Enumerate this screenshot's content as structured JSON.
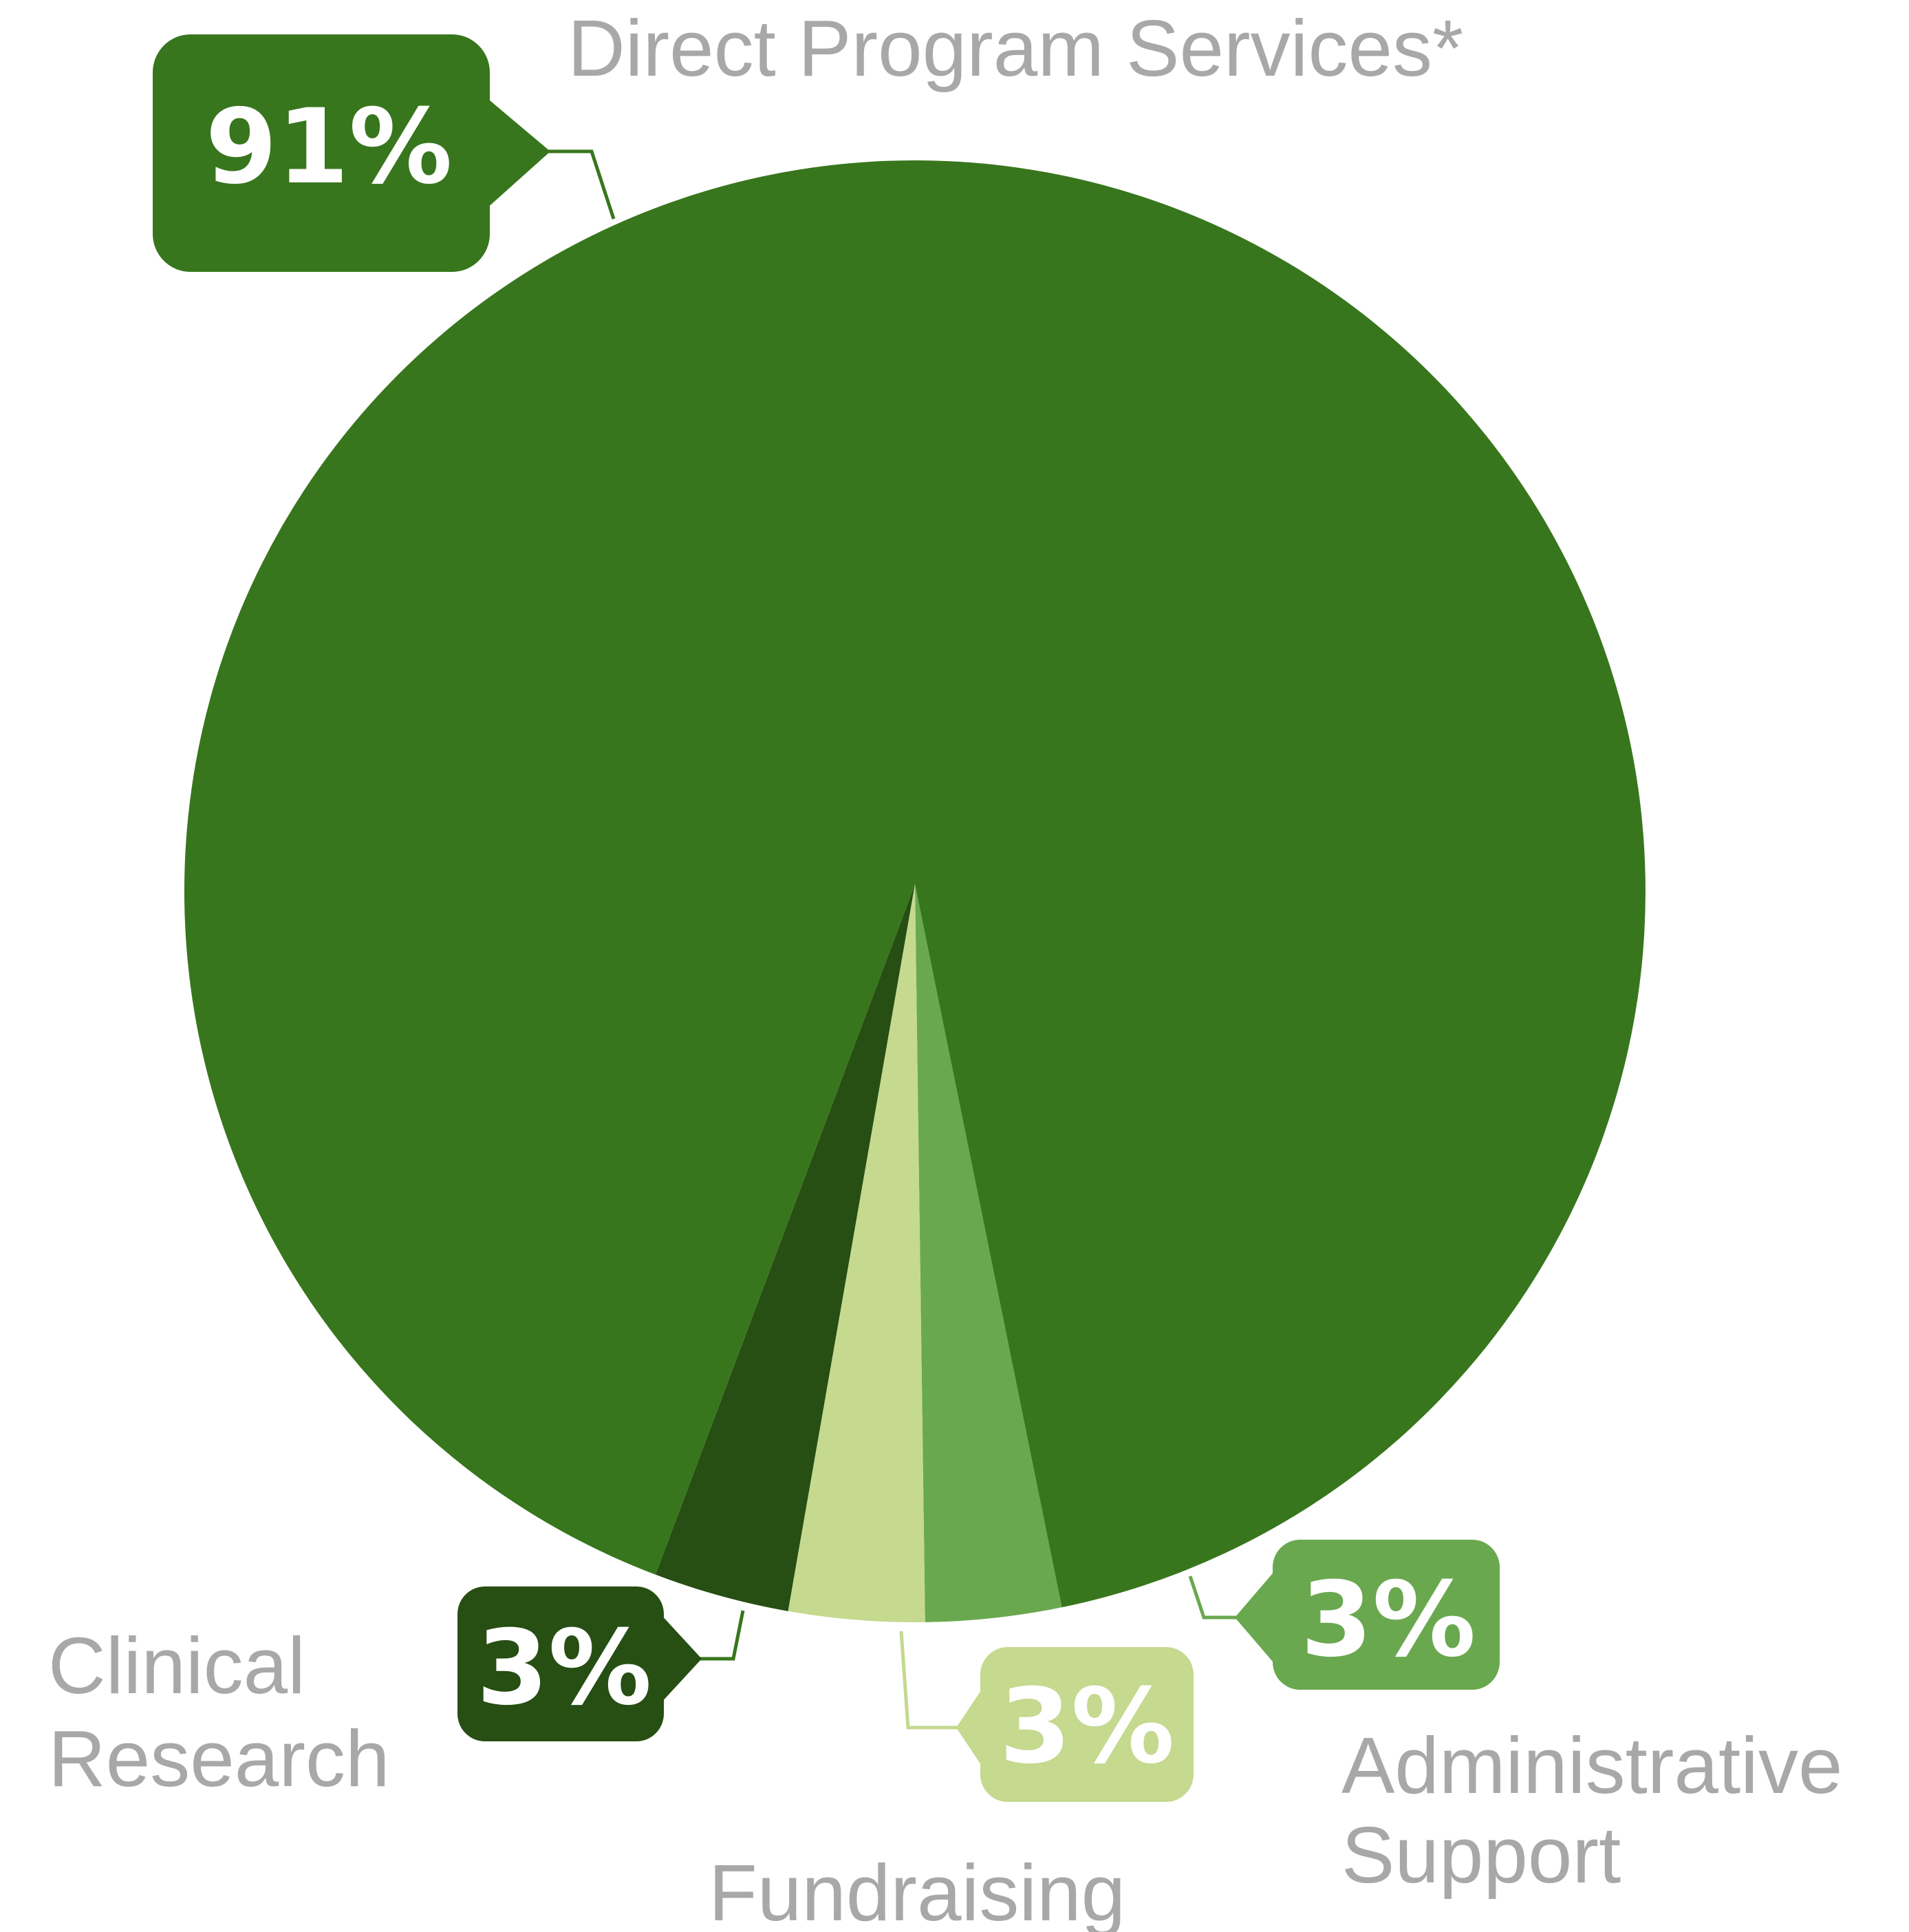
{
  "chart_data": {
    "type": "pie",
    "title": "",
    "slices": [
      {
        "label": "Direct Program Services*",
        "value": 91,
        "value_label": "91%",
        "color": "#38761d"
      },
      {
        "label": "Administrative Support",
        "value": 3,
        "value_label": "3%",
        "color": "#6aa84f"
      },
      {
        "label": "Fundraising",
        "value": 3,
        "value_label": "3%",
        "color": "#c5d98f"
      },
      {
        "label": "Clinical Research",
        "value": 3,
        "value_label": "3%",
        "color": "#274e13"
      }
    ],
    "legend": "none",
    "start": "bottom, clockwise from Clinical Research"
  }
}
